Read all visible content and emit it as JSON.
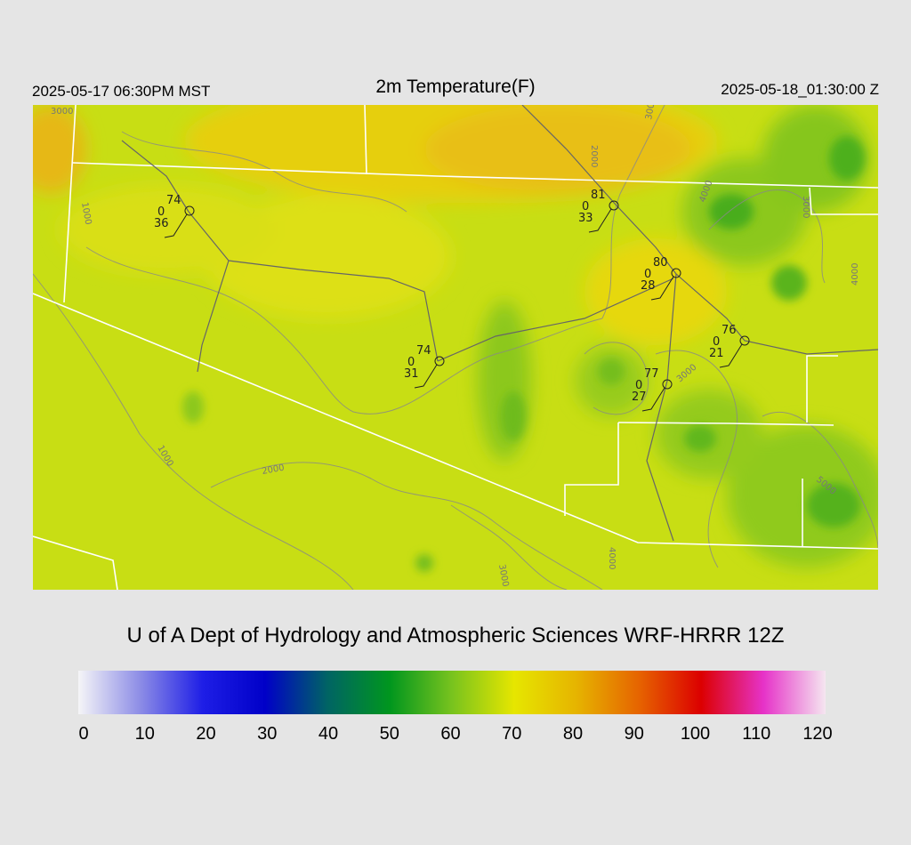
{
  "header": {
    "local_time": "2025-05-17 06:30PM MST",
    "title": "2m Temperature(F)",
    "utc_time": "2025-05-18_01:30:00 Z"
  },
  "credit": "U of A Dept of Hydrology and Atmospheric Sciences WRF-HRRR 12Z",
  "colorbar": {
    "ticks": [
      "0",
      "10",
      "20",
      "30",
      "40",
      "50",
      "60",
      "70",
      "80",
      "90",
      "100",
      "110",
      "120"
    ],
    "colors": [
      "#f5f5f7",
      "#8c8ce6",
      "#1e1ee6",
      "#0000c8",
      "#006464",
      "#00961e",
      "#78c31e",
      "#e6e600",
      "#e6b400",
      "#e66400",
      "#dc0000",
      "#e632c8",
      "#f5e6f0"
    ]
  },
  "stations": [
    {
      "temp": "74",
      "precip": "0",
      "dew": "36"
    },
    {
      "temp": "81",
      "precip": "0",
      "dew": "33"
    },
    {
      "temp": "80",
      "precip": "0",
      "dew": "28"
    },
    {
      "temp": "74",
      "precip": "0",
      "dew": "31"
    },
    {
      "temp": "76",
      "precip": "0",
      "dew": "21"
    },
    {
      "temp": "77",
      "precip": "0",
      "dew": "27"
    }
  ],
  "contour_labels": [
    "1000",
    "1000",
    "2000",
    "2000",
    "3000",
    "3000",
    "3000",
    "4000",
    "4000",
    "3000",
    "4000",
    "5000",
    "3000"
  ]
}
